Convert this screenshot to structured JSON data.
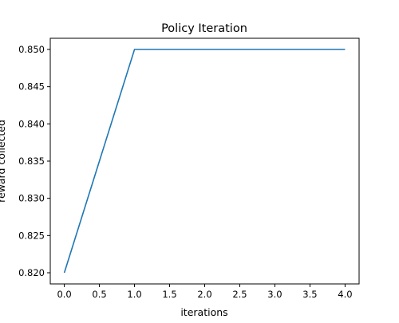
{
  "chart_data": {
    "type": "line",
    "title": "Policy Iteration",
    "xlabel": "iterations",
    "ylabel": "reward collected",
    "xlim": [
      -0.2,
      4.2
    ],
    "ylim": [
      0.8185,
      0.8515
    ],
    "x_ticks": [
      0.0,
      0.5,
      1.0,
      1.5,
      2.0,
      2.5,
      3.0,
      3.5,
      4.0
    ],
    "x_tick_labels": [
      "0.0",
      "0.5",
      "1.0",
      "1.5",
      "2.0",
      "2.5",
      "3.0",
      "3.5",
      "4.0"
    ],
    "y_ticks": [
      0.82,
      0.825,
      0.83,
      0.835,
      0.84,
      0.845,
      0.85
    ],
    "y_tick_labels": [
      "0.820",
      "0.825",
      "0.830",
      "0.835",
      "0.840",
      "0.845",
      "0.850"
    ],
    "grid": false,
    "series": [
      {
        "color": "#1f77b4",
        "x": [
          0,
          1,
          2,
          3,
          4
        ],
        "y": [
          0.82,
          0.85,
          0.85,
          0.85,
          0.85
        ]
      }
    ]
  }
}
